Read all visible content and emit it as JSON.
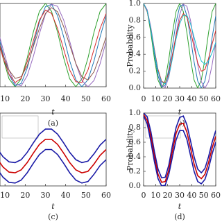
{
  "chart_data": [
    {
      "type": "line",
      "caption": "(a)",
      "xlabel": "t",
      "x": [
        0,
        3,
        6,
        9,
        12,
        15,
        18,
        21,
        24,
        27,
        30,
        33,
        36,
        39,
        42,
        45,
        48,
        51,
        54,
        57,
        60
      ],
      "xlim": [
        0,
        60
      ],
      "ylim": [
        0,
        1
      ],
      "xticks": [
        10,
        20,
        30,
        40,
        50,
        60
      ],
      "series": [
        {
          "color": "#2ca02c",
          "values": [
            1,
            0.905,
            0.655,
            0.345,
            0.095,
            0,
            0.095,
            0.345,
            0.655,
            0.905,
            1,
            0.905,
            0.655,
            0.345,
            0.095,
            0,
            0.095,
            0.345,
            0.655,
            0.905,
            1
          ]
        },
        {
          "color": "#1f77b4",
          "values": [
            1,
            0.916,
            0.691,
            0.402,
            0.146,
            0.01,
            0.038,
            0.222,
            0.5,
            0.778,
            0.962,
            0.99,
            0.854,
            0.598,
            0.309,
            0.084,
            0,
            0.084,
            0.309,
            0.598,
            0.854
          ]
        },
        {
          "color": "#9467bd",
          "values": [
            1,
            0.925,
            0.722,
            0.454,
            0.199,
            0.034,
            0.009,
            0.131,
            0.362,
            0.637,
            0.87,
            0.991,
            0.966,
            0.801,
            0.546,
            0.277,
            0.075,
            0,
            0.075,
            0.277,
            0.546
          ]
        },
        {
          "color": "#d62728",
          "values": [
            0.9,
            0.8,
            0.6,
            0.35,
            0.15,
            0.05,
            0.1,
            0.3,
            0.55,
            0.8,
            0.92,
            0.88,
            0.7,
            0.45,
            0.2,
            0.06,
            0.05,
            0.2,
            0.45,
            0.7,
            0.88
          ]
        },
        {
          "color": "#8c564b",
          "values": [
            0.95,
            0.85,
            0.62,
            0.38,
            0.2,
            0.1,
            0.12,
            0.25,
            0.48,
            0.7,
            0.88,
            0.95,
            0.9,
            0.72,
            0.5,
            0.28,
            0.12,
            0.08,
            0.18,
            0.38,
            0.6
          ]
        }
      ]
    },
    {
      "type": "line",
      "caption": "(b)",
      "xlabel": "t",
      "ylabel": "Probability",
      "x": [
        0,
        3,
        6,
        9,
        12,
        15,
        18,
        21,
        24,
        27,
        30,
        33,
        36,
        39,
        42,
        45,
        48,
        51,
        54,
        57,
        60
      ],
      "xlim": [
        0,
        60
      ],
      "ylim": [
        0,
        1
      ],
      "xticks": [
        0,
        10,
        20,
        30,
        40,
        50,
        60
      ],
      "yticks": [
        {
          "value": 0,
          "label": "0.0"
        },
        0.2,
        0.4,
        0.6,
        0.8,
        {
          "value": 1,
          "label": "1.0"
        }
      ],
      "series": [
        {
          "color": "#2ca02c",
          "values": [
            1,
            0.905,
            0.655,
            0.345,
            0.095,
            0,
            0.095,
            0.345,
            0.655,
            0.905,
            1,
            0.905,
            0.655,
            0.345,
            0.095,
            0,
            0.095,
            0.345,
            0.655,
            0.905,
            1
          ]
        },
        {
          "color": "#1f77b4",
          "values": [
            1,
            0.916,
            0.691,
            0.402,
            0.146,
            0.01,
            0.038,
            0.222,
            0.5,
            0.778,
            0.962,
            0.99,
            0.854,
            0.598,
            0.309,
            0.084,
            0,
            0.084,
            0.309,
            0.598,
            0.854
          ]
        },
        {
          "color": "#9467bd",
          "values": [
            1,
            0.925,
            0.722,
            0.454,
            0.199,
            0.034,
            0.009,
            0.131,
            0.362,
            0.637,
            0.87,
            0.991,
            0.966,
            0.801,
            0.546,
            0.277,
            0.075,
            0,
            0.075,
            0.277,
            0.546
          ]
        },
        {
          "color": "#d62728",
          "values": [
            1,
            0.9,
            0.7,
            0.45,
            0.22,
            0.08,
            0.06,
            0.18,
            0.4,
            0.62,
            0.8,
            0.88,
            0.84,
            0.68,
            0.48,
            0.3,
            0.2,
            0.22,
            0.35,
            0.52,
            0.68
          ]
        },
        {
          "color": "#17becf",
          "values": [
            1,
            0.91,
            0.7,
            0.43,
            0.2,
            0.07,
            0.05,
            0.15,
            0.35,
            0.58,
            0.76,
            0.86,
            0.86,
            0.76,
            0.6,
            0.44,
            0.32,
            0.28,
            0.32,
            0.42,
            0.54
          ]
        }
      ]
    },
    {
      "type": "line",
      "caption": "(c)",
      "xlabel": "t",
      "x": [
        0,
        3,
        6,
        9,
        12,
        15,
        18,
        21,
        24,
        27,
        30,
        33,
        36,
        39,
        42,
        45,
        48,
        51,
        54,
        57,
        60
      ],
      "xlim": [
        0,
        60
      ],
      "ylim": [
        0,
        1
      ],
      "xticks": [
        10,
        20,
        30,
        40,
        50,
        60
      ],
      "series": [
        {
          "color": "#1a1aa6",
          "values": [
            0.74,
            0.64,
            0.52,
            0.4,
            0.33,
            0.32,
            0.36,
            0.46,
            0.59,
            0.71,
            0.78,
            0.78,
            0.71,
            0.59,
            0.46,
            0.36,
            0.32,
            0.34,
            0.44,
            0.56,
            0.64
          ]
        },
        {
          "color": "#cc0000",
          "values": [
            0.6,
            0.5,
            0.38,
            0.26,
            0.19,
            0.18,
            0.22,
            0.32,
            0.45,
            0.57,
            0.64,
            0.64,
            0.57,
            0.45,
            0.32,
            0.22,
            0.18,
            0.2,
            0.3,
            0.42,
            0.5
          ]
        },
        {
          "color": "#1a1aa6",
          "values": [
            0.46,
            0.36,
            0.24,
            0.12,
            0.05,
            0.04,
            0.08,
            0.18,
            0.31,
            0.43,
            0.5,
            0.5,
            0.43,
            0.31,
            0.18,
            0.08,
            0.04,
            0.06,
            0.16,
            0.28,
            0.36
          ]
        }
      ]
    },
    {
      "type": "line",
      "caption": "(d)",
      "xlabel": "t",
      "ylabel": "Probability",
      "x": [
        0,
        3,
        6,
        9,
        12,
        15,
        18,
        21,
        24,
        27,
        30,
        33,
        36,
        39,
        42,
        45,
        48,
        51,
        54,
        57,
        60
      ],
      "xlim": [
        0,
        60
      ],
      "ylim": [
        0,
        1
      ],
      "xticks": [
        0,
        10,
        20,
        30,
        40,
        50,
        60
      ],
      "yticks": [
        {
          "value": 0,
          "label": "0.0"
        },
        0.2,
        0.4,
        0.6,
        0.8,
        {
          "value": 1,
          "label": "1.0"
        }
      ],
      "series": [
        {
          "color": "#1a1aa6",
          "values": [
            1,
            0.95,
            0.75,
            0.47,
            0.23,
            0.11,
            0.12,
            0.29,
            0.56,
            0.8,
            0.94,
            0.96,
            0.84,
            0.62,
            0.4,
            0.23,
            0.18,
            0.24,
            0.4,
            0.6,
            0.76
          ]
        },
        {
          "color": "#cc0000",
          "values": [
            0.98,
            0.9,
            0.68,
            0.4,
            0.16,
            0.05,
            0.06,
            0.22,
            0.48,
            0.72,
            0.85,
            0.86,
            0.74,
            0.52,
            0.3,
            0.14,
            0.1,
            0.16,
            0.32,
            0.52,
            0.68
          ]
        },
        {
          "color": "#1a1aa6",
          "values": [
            0.96,
            0.85,
            0.61,
            0.33,
            0.1,
            0,
            0.01,
            0.16,
            0.4,
            0.63,
            0.76,
            0.76,
            0.64,
            0.42,
            0.2,
            0.06,
            0.03,
            0.09,
            0.24,
            0.44,
            0.6
          ]
        }
      ]
    }
  ]
}
